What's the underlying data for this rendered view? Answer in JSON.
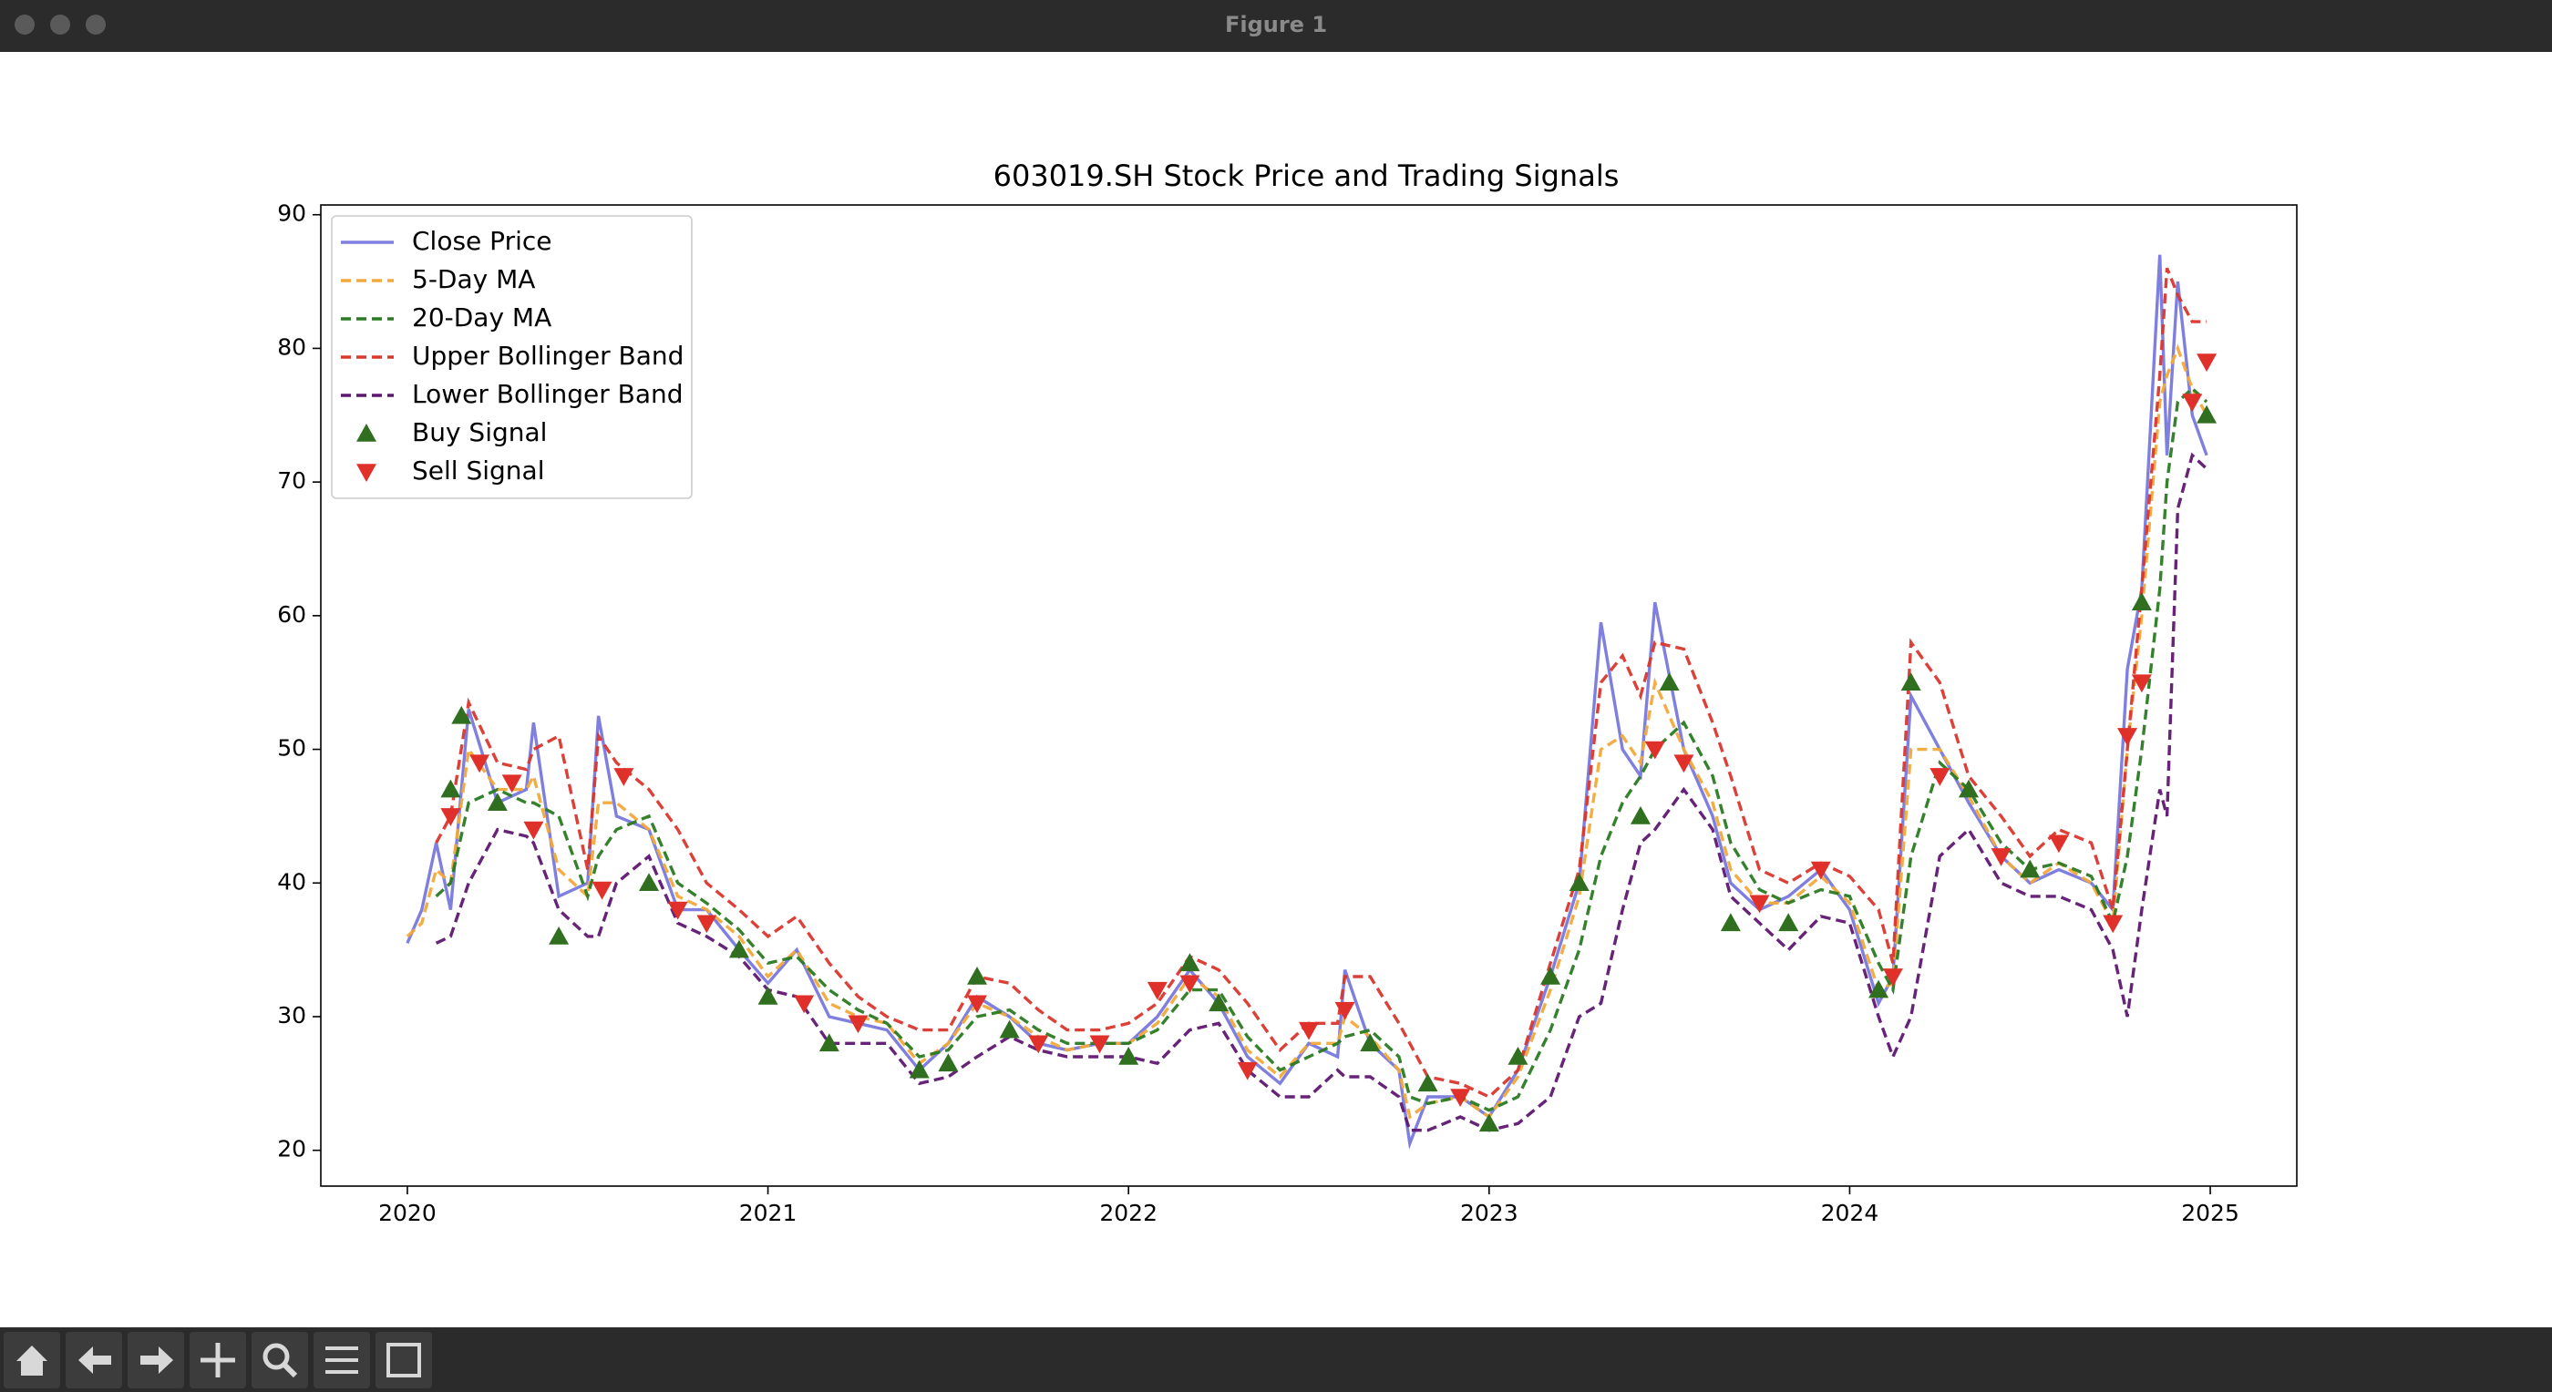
{
  "window": {
    "title": "Figure 1"
  },
  "chart_data": {
    "type": "line",
    "title": "603019.SH Stock Price and Trading Signals",
    "x": [
      2020.0,
      2020.04,
      2020.08,
      2020.12,
      2020.17,
      2020.25,
      2020.33,
      2020.35,
      2020.42,
      2020.5,
      2020.53,
      2020.58,
      2020.67,
      2020.75,
      2020.83,
      2020.92,
      2021.0,
      2021.08,
      2021.17,
      2021.25,
      2021.33,
      2021.42,
      2021.5,
      2021.58,
      2021.67,
      2021.75,
      2021.83,
      2021.92,
      2022.0,
      2022.08,
      2022.17,
      2022.25,
      2022.33,
      2022.42,
      2022.5,
      2022.58,
      2022.6,
      2022.67,
      2022.75,
      2022.78,
      2022.83,
      2022.92,
      2023.0,
      2023.08,
      2023.17,
      2023.25,
      2023.31,
      2023.37,
      2023.42,
      2023.46,
      2023.54,
      2023.62,
      2023.67,
      2023.75,
      2023.83,
      2023.92,
      2024.0,
      2024.08,
      2024.12,
      2024.17,
      2024.25,
      2024.33,
      2024.42,
      2024.5,
      2024.58,
      2024.67,
      2024.73,
      2024.77,
      2024.81,
      2024.86,
      2024.88,
      2024.91,
      2024.95,
      2024.99
    ],
    "series": [
      {
        "name": "Close Price",
        "color": "#7f7fdf",
        "dashed": false,
        "values": [
          35.5,
          38,
          43,
          38,
          53,
          46,
          47,
          52,
          39,
          40,
          52.5,
          45,
          44,
          38,
          38,
          35,
          32.5,
          35,
          30,
          29.5,
          29,
          26,
          28,
          31.5,
          30,
          28,
          27.5,
          28,
          28,
          30,
          33.5,
          31,
          27,
          25,
          28,
          27,
          33.5,
          28,
          26,
          20.5,
          24,
          24,
          22.5,
          26,
          33,
          40,
          59.5,
          50,
          48,
          61,
          50,
          45,
          40,
          38,
          39,
          41,
          38,
          31,
          33,
          54,
          50,
          46,
          42,
          40,
          41,
          40,
          38,
          56,
          62,
          87,
          72,
          85,
          75,
          72
        ]
      },
      {
        "name": "5-Day MA",
        "color": "#f2a93b",
        "dashed": true,
        "values": [
          36,
          37,
          41,
          40,
          50,
          47,
          47,
          48,
          41,
          39,
          46,
          46,
          44,
          39,
          38,
          36,
          33,
          35,
          31,
          30,
          29.5,
          26.5,
          28,
          31,
          30,
          28.5,
          27.5,
          28,
          28,
          29.5,
          33,
          31.5,
          27.5,
          25.5,
          28,
          28,
          30,
          28.5,
          26,
          22.5,
          23.5,
          24,
          22.5,
          25.5,
          32,
          39,
          50,
          51,
          49,
          55,
          50,
          46,
          41,
          38.5,
          38.5,
          40.5,
          38.5,
          32,
          32.5,
          50,
          50,
          46.5,
          42,
          40,
          41.5,
          40,
          37,
          50,
          60,
          76,
          78,
          80,
          77,
          75
        ]
      },
      {
        "name": "20-Day MA",
        "color": "#2a7a22",
        "dashed": true,
        "values": [
          null,
          null,
          39,
          40,
          46,
          47,
          46,
          46,
          45,
          39,
          42,
          44,
          45,
          40,
          38.5,
          36.5,
          34,
          34.5,
          32,
          30.5,
          29.5,
          27,
          27.5,
          30,
          30.5,
          29,
          28,
          28,
          28,
          29,
          32,
          32,
          28.5,
          26,
          27,
          28,
          28.5,
          29,
          27,
          24,
          23.5,
          24,
          23,
          24,
          29,
          35,
          42,
          46,
          48,
          50,
          52,
          48,
          43,
          39.5,
          38.5,
          39.5,
          39,
          34,
          32,
          42,
          49,
          47,
          43,
          41,
          41.5,
          40.5,
          37,
          42,
          50,
          62,
          70,
          76,
          77,
          76
        ]
      },
      {
        "name": "Upper Bollinger Band",
        "color": "#d9372e",
        "dashed": true,
        "values": [
          null,
          null,
          43,
          45,
          53.5,
          49,
          48.5,
          50,
          51,
          41,
          51,
          49,
          47,
          44,
          40,
          38,
          36,
          37.5,
          34,
          31.5,
          30,
          29,
          29,
          33,
          32.5,
          30.5,
          29,
          29,
          29.5,
          31,
          34.5,
          33.5,
          31,
          27.5,
          29.5,
          29.5,
          33,
          33,
          29.5,
          28,
          25.5,
          25,
          24,
          26,
          34,
          41,
          55,
          57,
          54,
          58,
          57.5,
          52,
          48,
          41,
          40,
          41.5,
          40.5,
          38,
          34,
          58,
          55,
          48,
          45,
          42,
          44,
          43,
          38,
          50,
          62,
          78,
          86,
          84,
          82,
          82
        ]
      },
      {
        "name": "Lower Bollinger Band",
        "color": "#5e1770",
        "dashed": true,
        "values": [
          null,
          null,
          35.5,
          36,
          40,
          44,
          43.5,
          43,
          38,
          36,
          36,
          40,
          42,
          37,
          36,
          34.5,
          32,
          31.5,
          28,
          28,
          28,
          25,
          25.5,
          27,
          28.5,
          27.5,
          27,
          27,
          27,
          26.5,
          29,
          29.5,
          26,
          24,
          24,
          26,
          25.5,
          25.5,
          24,
          21.5,
          21.5,
          22.5,
          21.5,
          22,
          24,
          30,
          31,
          38,
          43,
          44,
          47,
          44,
          39,
          37,
          35,
          37.5,
          37,
          30,
          27,
          30,
          42,
          44,
          40,
          39,
          39,
          38,
          35,
          30,
          38,
          47,
          45,
          68,
          72,
          71
        ]
      },
      {
        "name": "Buy Signal",
        "type": "scatter",
        "marker": "up",
        "color": "#2f6f1f",
        "x": [
          2020.12,
          2020.15,
          2020.25,
          2020.42,
          2020.67,
          2020.92,
          2021.0,
          2021.17,
          2021.42,
          2021.5,
          2021.58,
          2021.67,
          2022.0,
          2022.17,
          2022.25,
          2022.67,
          2022.83,
          2023.0,
          2023.08,
          2023.17,
          2023.25,
          2023.42,
          2023.5,
          2023.67,
          2023.83,
          2024.08,
          2024.17,
          2024.33,
          2024.5,
          2024.81,
          2024.99
        ],
        "values": [
          47,
          52.5,
          46,
          36,
          40,
          35,
          31.5,
          28,
          26,
          26.5,
          33,
          29,
          27,
          34,
          31,
          28,
          25,
          22,
          27,
          33,
          40,
          45,
          55,
          37,
          37,
          32,
          55,
          47,
          41,
          61,
          75
        ]
      },
      {
        "name": "Sell Signal",
        "type": "scatter",
        "marker": "down",
        "color": "#e0302a",
        "x": [
          2020.12,
          2020.2,
          2020.29,
          2020.35,
          2020.54,
          2020.6,
          2020.75,
          2020.83,
          2021.1,
          2021.25,
          2021.58,
          2021.75,
          2021.92,
          2022.08,
          2022.17,
          2022.33,
          2022.5,
          2022.6,
          2022.92,
          2023.46,
          2023.54,
          2023.75,
          2023.92,
          2024.12,
          2024.25,
          2024.42,
          2024.58,
          2024.73,
          2024.77,
          2024.81,
          2024.95,
          2024.99
        ],
        "values": [
          45,
          49,
          47.5,
          44,
          39.5,
          48,
          38,
          37,
          31,
          29.5,
          31,
          28,
          28,
          32,
          32.5,
          26,
          29,
          30.5,
          24,
          50,
          49,
          38.5,
          41,
          33,
          48,
          42,
          43,
          37,
          51,
          55,
          76,
          79
        ]
      }
    ],
    "xlim": [
      2019.76,
      2025.24
    ],
    "ylim": [
      17.32,
      90.73
    ],
    "xticks": [
      2020,
      2021,
      2022,
      2023,
      2024,
      2025
    ],
    "yticks": [
      20,
      30,
      40,
      50,
      60,
      70,
      80,
      90
    ],
    "legend": "upper left"
  }
}
